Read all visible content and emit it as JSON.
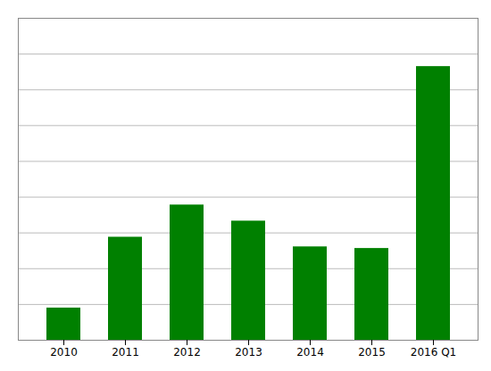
{
  "chart_data": {
    "type": "bar",
    "categories": [
      "2010",
      "2011",
      "2012",
      "2013",
      "2014",
      "2015",
      "2016 Q1"
    ],
    "values": [
      1.0,
      3.2,
      4.2,
      3.7,
      2.9,
      2.85,
      8.5
    ],
    "color": "#008000",
    "ylim": [
      0,
      10
    ],
    "yticks": [
      0,
      1.1111111111111112,
      2.2222222222222223,
      3.3333333333333335,
      4.444444444444445,
      5.555555555555555,
      6.666666666666667,
      7.777777777777778,
      8.88888888888889,
      10
    ],
    "grid": true,
    "tick_labels": "x"
  }
}
